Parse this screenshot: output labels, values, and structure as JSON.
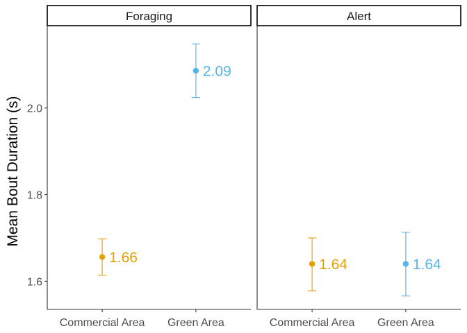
{
  "chart_data": {
    "type": "scatter",
    "ylabel": "Mean Bout Duration (s)",
    "ylim": [
      1.535,
      2.19
    ],
    "yticks": [
      1.6,
      1.8,
      2.0
    ],
    "ytick_labels": [
      "1.6",
      "1.8",
      "2.0"
    ],
    "categories": [
      "Commercial Area",
      "Green Area"
    ],
    "colors": {
      "Commercial Area": "#E69F00",
      "Green Area": "#56B4E9"
    },
    "grid": false,
    "panels": [
      {
        "title": "Foraging",
        "points": [
          {
            "category": "Commercial Area",
            "mean": 1.656,
            "lower": 1.614,
            "upper": 1.698,
            "label": "1.66"
          },
          {
            "category": "Green Area",
            "mean": 2.086,
            "lower": 2.024,
            "upper": 2.148,
            "label": "2.09"
          }
        ]
      },
      {
        "title": "Alert",
        "points": [
          {
            "category": "Commercial Area",
            "mean": 1.64,
            "lower": 1.578,
            "upper": 1.7,
            "label": "1.64"
          },
          {
            "category": "Green Area",
            "mean": 1.64,
            "lower": 1.566,
            "upper": 1.713,
            "label": "1.64"
          }
        ]
      }
    ]
  }
}
